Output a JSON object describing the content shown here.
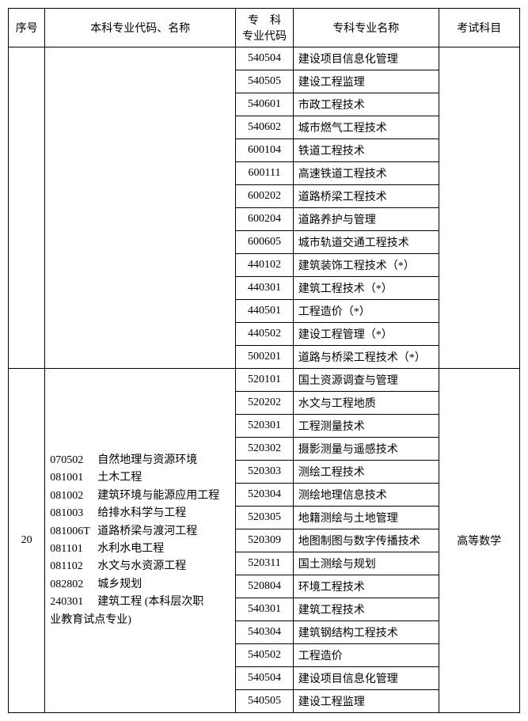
{
  "header": {
    "seq": "序号",
    "bk": "本科专业代码、名称",
    "zkcode_l1": "专　科",
    "zkcode_l2": "专业代码",
    "zkname": "专科专业名称",
    "exam": "考试科目"
  },
  "group1": {
    "rows": [
      {
        "code": "540504",
        "name": "建设项目信息化管理"
      },
      {
        "code": "540505",
        "name": "建设工程监理"
      },
      {
        "code": "540601",
        "name": "市政工程技术"
      },
      {
        "code": "540602",
        "name": "城市燃气工程技术"
      },
      {
        "code": "600104",
        "name": "铁道工程技术"
      },
      {
        "code": "600111",
        "name": "高速铁道工程技术"
      },
      {
        "code": "600202",
        "name": "道路桥梁工程技术"
      },
      {
        "code": "600204",
        "name": "道路养护与管理"
      },
      {
        "code": "600605",
        "name": "城市轨道交通工程技术"
      },
      {
        "code": "440102",
        "name": "建筑装饰工程技术（*）"
      },
      {
        "code": "440301",
        "name": "建筑工程技术（*）"
      },
      {
        "code": "440501",
        "name": "工程造价（*）"
      },
      {
        "code": "440502",
        "name": "建设工程管理（*）"
      },
      {
        "code": "500201",
        "name": "道路与桥梁工程技术（*）"
      }
    ]
  },
  "group2": {
    "seq": "20",
    "exam": "高等数学",
    "bk": [
      {
        "code": "070502",
        "name": "自然地理与资源环境"
      },
      {
        "code": "081001",
        "name": "土木工程"
      },
      {
        "code": "081002",
        "name": "建筑环境与能源应用工程"
      },
      {
        "code": "081003",
        "name": "给排水科学与工程"
      },
      {
        "code": "081006T",
        "name": "道路桥梁与渡河工程"
      },
      {
        "code": "081101",
        "name": "水利水电工程"
      },
      {
        "code": "081102",
        "name": "水文与水资源工程"
      },
      {
        "code": "082802",
        "name": "城乡规划"
      },
      {
        "code": "240301",
        "name": "建筑工程 (本科层次职"
      }
    ],
    "bk_tail": "业教育试点专业)",
    "rows": [
      {
        "code": "520101",
        "name": "国土资源调查与管理"
      },
      {
        "code": "520202",
        "name": "水文与工程地质"
      },
      {
        "code": "520301",
        "name": "工程测量技术"
      },
      {
        "code": "520302",
        "name": "摄影测量与遥感技术"
      },
      {
        "code": "520303",
        "name": "测绘工程技术"
      },
      {
        "code": "520304",
        "name": "测绘地理信息技术"
      },
      {
        "code": "520305",
        "name": "地籍测绘与土地管理"
      },
      {
        "code": "520309",
        "name": "地图制图与数字传播技术"
      },
      {
        "code": "520311",
        "name": "国土测绘与规划"
      },
      {
        "code": "520804",
        "name": "环境工程技术"
      },
      {
        "code": "540301",
        "name": "建筑工程技术"
      },
      {
        "code": "540304",
        "name": "建筑钢结构工程技术"
      },
      {
        "code": "540502",
        "name": "工程造价"
      },
      {
        "code": "540504",
        "name": "建设项目信息化管理"
      },
      {
        "code": "540505",
        "name": "建设工程监理"
      }
    ]
  }
}
